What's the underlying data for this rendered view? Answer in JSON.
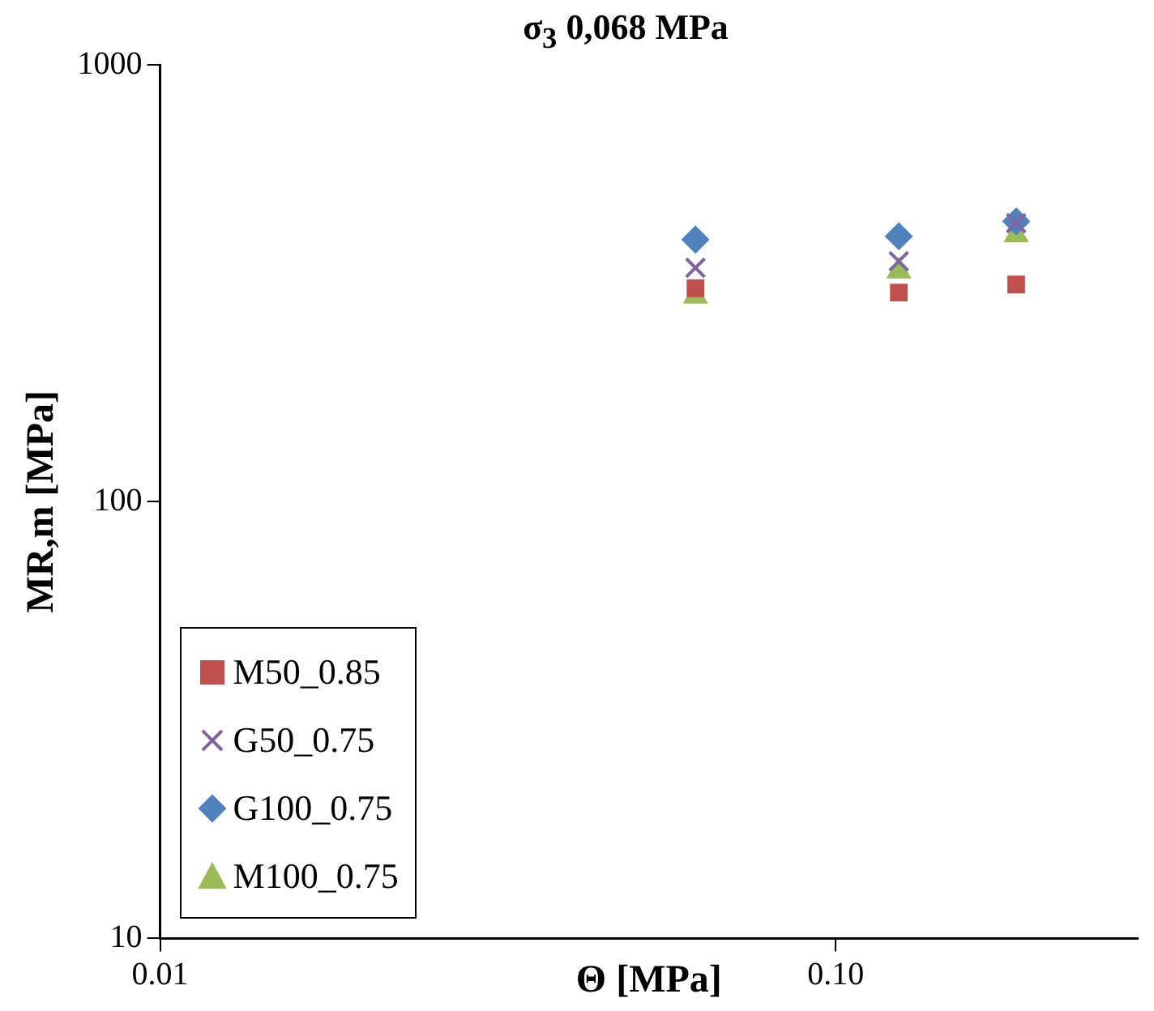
{
  "chart_data": {
    "type": "scatter",
    "title": "σ$_{3}$ 0,068 MPa",
    "xlabel": "Θ [MPa]",
    "ylabel": "MR,m [MPa]",
    "log": "xy",
    "xlim": [
      0.01,
      0.28
    ],
    "xticks": [
      {
        "value": 0.01,
        "label": "0.01"
      },
      {
        "value": 0.1,
        "label": "0.10"
      }
    ],
    "ylim": [
      10,
      1000
    ],
    "yticks": [
      10,
      100,
      1000
    ],
    "grid": false,
    "legend": "bottom left",
    "x": [
      0.062,
      0.124,
      0.185
    ],
    "series": [
      {
        "name": "M50_0.85",
        "color": "#c0504d",
        "marker": "square",
        "values": [
          308,
          301,
          314
        ]
      },
      {
        "name": "G50_0.75",
        "color": "#8064a2",
        "marker": "cross",
        "values": [
          343,
          355,
          434
        ]
      },
      {
        "name": "G100_0.75",
        "color": "#4f81bd",
        "marker": "diamond",
        "values": [
          398,
          405,
          438
        ]
      },
      {
        "name": "M100_0.75",
        "color": "#9bbb59",
        "marker": "triangle",
        "values": [
          295,
          337,
          408
        ]
      }
    ]
  }
}
